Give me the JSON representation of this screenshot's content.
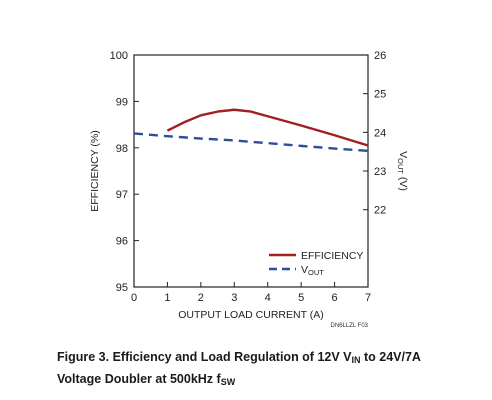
{
  "chart_data": {
    "type": "line",
    "x": {
      "label": "OUTPUT LOAD CURRENT (A)",
      "range": [
        0,
        7
      ],
      "ticks": [
        0,
        1,
        2,
        3,
        4,
        5,
        6,
        7
      ]
    },
    "y_left": {
      "label": "EFFICIENCY (%)",
      "range": [
        95,
        100
      ],
      "ticks": [
        95,
        96,
        97,
        98,
        99,
        100
      ]
    },
    "y_right": {
      "label": "V",
      "label_sub": "OUT",
      "label_suffix": " (V)",
      "range": [
        20,
        26
      ],
      "ticks": [
        22,
        23,
        24,
        25,
        26
      ]
    },
    "series": [
      {
        "name": "EFFICIENCY",
        "axis": "left",
        "color": "#a31e22",
        "style": "solid",
        "points": [
          [
            1.0,
            98.37
          ],
          [
            1.5,
            98.55
          ],
          [
            2.0,
            98.7
          ],
          [
            2.5,
            98.78
          ],
          [
            3.0,
            98.82
          ],
          [
            3.5,
            98.78
          ],
          [
            4.0,
            98.68
          ],
          [
            5.0,
            98.48
          ],
          [
            6.0,
            98.27
          ],
          [
            7.0,
            98.05
          ]
        ]
      },
      {
        "name": "V",
        "name_sub": "OUT",
        "axis": "right",
        "color": "#2d4f9a",
        "style": "dashed",
        "points": [
          [
            0,
            23.97
          ],
          [
            1,
            23.9
          ],
          [
            2,
            23.84
          ],
          [
            3,
            23.79
          ],
          [
            4,
            23.72
          ],
          [
            5,
            23.65
          ],
          [
            6,
            23.58
          ],
          [
            7,
            23.52
          ]
        ]
      }
    ],
    "legend_placement": "bottom-right",
    "grid": false
  },
  "figure_tag": "DN6LLZL F03",
  "caption": {
    "line1_a": "Figure 3. Efficiency and Load Regulation of 12V V",
    "line1_sub": "IN",
    "line1_b": " to 24V/7A",
    "line2_a": "Voltage Doubler at 500kHz f",
    "line2_sub": "SW"
  }
}
